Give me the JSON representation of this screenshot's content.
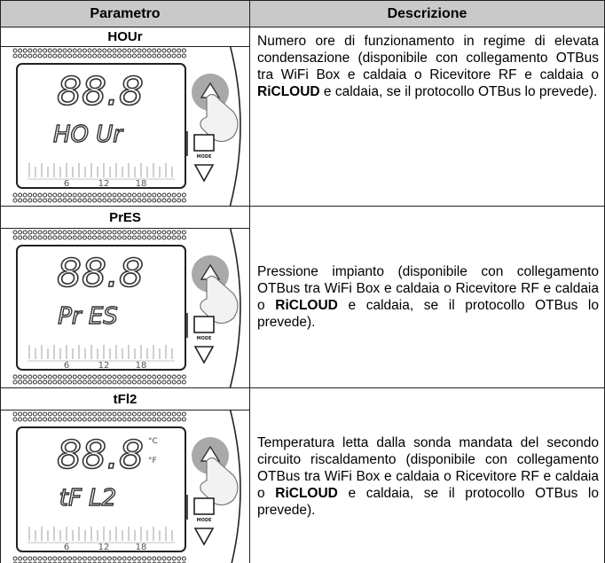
{
  "table": {
    "headers": [
      "Parametro",
      "Descrizione"
    ],
    "rows": [
      {
        "parameter": "HOUr",
        "display": {
          "digits": "88.8",
          "code": "HO Ur",
          "mode": "MODE",
          "scale": [
            "6",
            "12",
            "18"
          ]
        },
        "description": {
          "before": "Numero ore di funzionamento in regime di elevata condensazione (disponibile con collegamento OTBus tra WiFi Box e caldaia o Ricevitore RF e caldaia o ",
          "emphasis": "RiCLOUD",
          "after": " e caldaia, se il protocollo OTBus lo prevede)."
        }
      },
      {
        "parameter": "PrES",
        "display": {
          "digits": "88.8",
          "code": "Pr ES",
          "mode": "MODE",
          "scale": [
            "6",
            "12",
            "18"
          ]
        },
        "description": {
          "before": "Pressione impianto (disponibile con collegamento OTBus tra WiFi Box e caldaia o Ricevitore RF e caldaia o ",
          "emphasis": "RiCLOUD",
          "after": " e caldaia, se il protocollo OTBus lo prevede)."
        }
      },
      {
        "parameter": "tFl2",
        "display": {
          "digits": "88.8",
          "code": "tF L2",
          "units": [
            "°C",
            "°F"
          ],
          "mode": "MODE",
          "scale": [
            "6",
            "12",
            "18"
          ]
        },
        "description": {
          "before": "Temperatura letta dalla sonda mandata del secondo circuito riscaldamento (disponibile con collegamento OTBus tra WiFi Box e caldaia o Ricevitore RF e caldaia o ",
          "emphasis": "RiCLOUD",
          "after": " e caldaia, se il protocollo OTBus lo prevede)."
        }
      }
    ]
  }
}
